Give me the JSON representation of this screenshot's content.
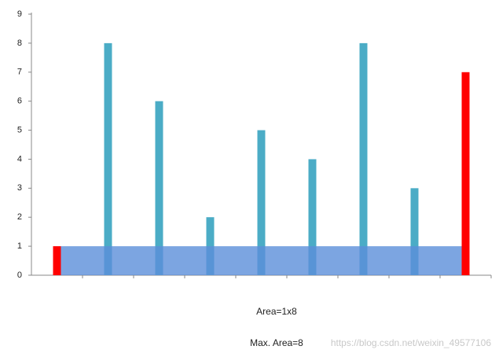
{
  "chart_data": {
    "type": "bar",
    "values": [
      1,
      8,
      6,
      2,
      5,
      4,
      8,
      3,
      7
    ],
    "colors": [
      "#ff0000",
      "#4bacc6",
      "#4bacc6",
      "#4bacc6",
      "#4bacc6",
      "#4bacc6",
      "#4bacc6",
      "#4bacc6",
      "#ff0000"
    ],
    "highlight_color": "#5b8fd9",
    "ylim": [
      0,
      9
    ],
    "yticks": [
      0,
      1,
      2,
      3,
      4,
      5,
      6,
      7,
      8,
      9
    ],
    "annotations": [
      "Area=1x8",
      "Max. Area=8"
    ],
    "watermark": "https://blog.csdn.net/weixin_49577106"
  }
}
